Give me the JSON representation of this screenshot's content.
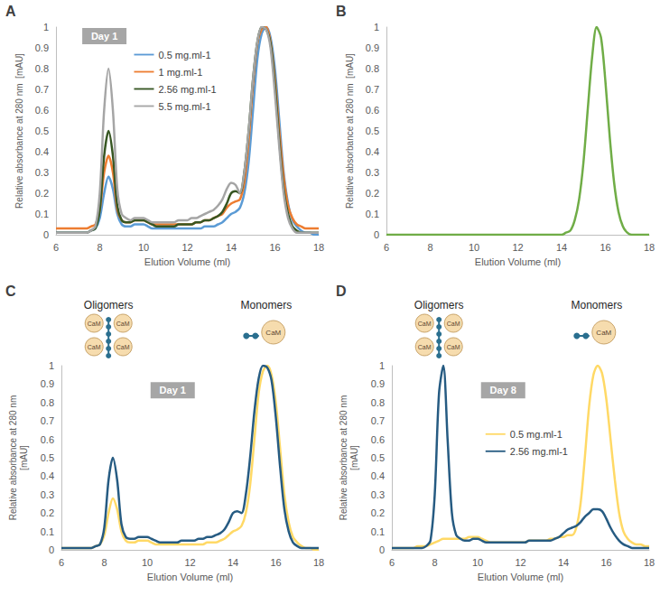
{
  "chart_data": [
    {
      "panel": "A",
      "type": "line",
      "badge": "Day 1",
      "x": [
        6.0,
        6.2,
        6.4,
        6.6,
        6.8,
        7.0,
        7.2,
        7.4,
        7.6,
        7.8,
        8.0,
        8.2,
        8.4,
        8.6,
        8.8,
        9.0,
        9.2,
        9.4,
        9.6,
        9.8,
        10.0,
        10.2,
        10.4,
        10.6,
        10.8,
        11.0,
        11.2,
        11.4,
        11.6,
        11.8,
        12.0,
        12.2,
        12.4,
        12.6,
        12.8,
        13.0,
        13.2,
        13.4,
        13.6,
        13.8,
        14.0,
        14.2,
        14.4,
        14.6,
        14.8,
        15.0,
        15.2,
        15.4,
        15.6,
        15.8,
        16.0,
        16.2,
        16.4,
        16.6,
        16.8,
        17.0,
        17.2,
        17.4,
        17.6,
        17.8,
        18.0
      ],
      "series": [
        {
          "name": "0.5 mg.ml-1",
          "color": "#5b9bd5",
          "values": [
            0.01,
            0.01,
            0.01,
            0.01,
            0.01,
            0.01,
            0.01,
            0.01,
            0.02,
            0.03,
            0.08,
            0.2,
            0.28,
            0.22,
            0.1,
            0.05,
            0.04,
            0.04,
            0.05,
            0.05,
            0.05,
            0.04,
            0.03,
            0.03,
            0.03,
            0.03,
            0.03,
            0.03,
            0.03,
            0.03,
            0.03,
            0.03,
            0.03,
            0.03,
            0.04,
            0.04,
            0.04,
            0.05,
            0.06,
            0.08,
            0.1,
            0.11,
            0.13,
            0.2,
            0.35,
            0.6,
            0.85,
            0.97,
            1.0,
            0.95,
            0.8,
            0.55,
            0.3,
            0.15,
            0.07,
            0.04,
            0.02,
            0.01,
            0.01,
            0,
            0
          ]
        },
        {
          "name": "1 mg.ml-1",
          "color": "#ed7d31",
          "values": [
            0.03,
            0.03,
            0.03,
            0.03,
            0.03,
            0.03,
            0.03,
            0.03,
            0.04,
            0.05,
            0.12,
            0.3,
            0.38,
            0.3,
            0.12,
            0.07,
            0.06,
            0.06,
            0.07,
            0.07,
            0.07,
            0.06,
            0.05,
            0.05,
            0.05,
            0.05,
            0.05,
            0.05,
            0.05,
            0.05,
            0.05,
            0.05,
            0.06,
            0.06,
            0.07,
            0.07,
            0.08,
            0.09,
            0.1,
            0.13,
            0.15,
            0.16,
            0.17,
            0.25,
            0.45,
            0.72,
            0.92,
            0.99,
            1.0,
            0.93,
            0.75,
            0.5,
            0.28,
            0.14,
            0.08,
            0.05,
            0.04,
            0.03,
            0.03,
            0.03,
            0.03
          ]
        },
        {
          "name": "2.56 mg.ml-1",
          "color": "#375623",
          "values": [
            0.01,
            0.01,
            0.01,
            0.01,
            0.01,
            0.01,
            0.01,
            0.01,
            0.02,
            0.03,
            0.12,
            0.38,
            0.5,
            0.38,
            0.14,
            0.07,
            0.06,
            0.06,
            0.07,
            0.07,
            0.07,
            0.06,
            0.05,
            0.04,
            0.04,
            0.04,
            0.04,
            0.04,
            0.05,
            0.05,
            0.05,
            0.05,
            0.06,
            0.06,
            0.07,
            0.07,
            0.08,
            0.09,
            0.11,
            0.15,
            0.2,
            0.21,
            0.2,
            0.3,
            0.5,
            0.75,
            0.93,
            1.0,
            0.99,
            0.92,
            0.72,
            0.45,
            0.22,
            0.1,
            0.04,
            0.02,
            0.01,
            0.01,
            0.01,
            0.01,
            0.01
          ]
        },
        {
          "name": "5.5 mg.ml-1",
          "color": "#a5a5a5",
          "values": [
            0.01,
            0.01,
            0.01,
            0.01,
            0.01,
            0.01,
            0.01,
            0.01,
            0.02,
            0.04,
            0.2,
            0.6,
            0.8,
            0.6,
            0.22,
            0.1,
            0.08,
            0.07,
            0.08,
            0.08,
            0.08,
            0.07,
            0.06,
            0.06,
            0.06,
            0.06,
            0.06,
            0.06,
            0.07,
            0.07,
            0.07,
            0.08,
            0.08,
            0.09,
            0.1,
            0.11,
            0.12,
            0.14,
            0.17,
            0.22,
            0.25,
            0.24,
            0.2,
            0.3,
            0.5,
            0.75,
            0.93,
            1.0,
            0.99,
            0.9,
            0.68,
            0.42,
            0.2,
            0.08,
            0.03,
            0.01,
            0.01,
            0.01,
            0.01,
            0.01,
            0.01
          ]
        }
      ],
      "xlim": [
        6,
        18
      ],
      "xticks": [
        6,
        8,
        10,
        12,
        14,
        16,
        18
      ],
      "ylim": [
        0,
        1
      ],
      "yticks": [
        0,
        0.1,
        0.2,
        0.3,
        0.4,
        0.5,
        0.6,
        0.7,
        0.8,
        0.9,
        1
      ],
      "x_label": "Elution Volume (ml)",
      "y_label": "Relative absorbance at 280 nm  [mAU]",
      "grid": false,
      "legend": "upper-left"
    },
    {
      "panel": "B",
      "type": "line",
      "x": [
        6.0,
        6.2,
        6.4,
        6.6,
        6.8,
        7.0,
        7.2,
        7.4,
        7.6,
        7.8,
        8.0,
        8.2,
        8.4,
        8.6,
        8.8,
        9.0,
        9.2,
        9.4,
        9.6,
        9.8,
        10.0,
        10.2,
        10.4,
        10.6,
        10.8,
        11.0,
        11.2,
        11.4,
        11.6,
        11.8,
        12.0,
        12.2,
        12.4,
        12.6,
        12.8,
        13.0,
        13.2,
        13.4,
        13.6,
        13.8,
        14.0,
        14.2,
        14.4,
        14.6,
        14.8,
        15.0,
        15.2,
        15.4,
        15.6,
        15.8,
        16.0,
        16.2,
        16.4,
        16.6,
        16.8,
        17.0,
        17.2,
        17.4,
        17.6,
        17.8,
        18.0
      ],
      "series": [
        {
          "color": "#70ad47",
          "values": [
            0,
            0,
            0,
            0,
            0,
            0,
            0,
            0,
            0,
            0,
            0,
            0,
            0,
            0,
            0,
            0,
            0,
            0,
            0,
            0,
            0,
            0,
            0,
            0,
            0,
            0,
            0,
            0,
            0,
            0,
            0,
            0,
            0,
            0,
            0,
            0,
            0,
            0,
            0,
            0,
            0,
            0.01,
            0.02,
            0.07,
            0.17,
            0.35,
            0.61,
            0.86,
            1.0,
            0.95,
            0.74,
            0.47,
            0.25,
            0.11,
            0.04,
            0.01,
            0,
            0,
            0,
            0,
            0
          ]
        }
      ],
      "xlim": [
        6,
        18
      ],
      "xticks": [
        6,
        8,
        10,
        12,
        14,
        16,
        18
      ],
      "ylim": [
        0,
        1
      ],
      "yticks": [
        0,
        0.1,
        0.2,
        0.3,
        0.4,
        0.5,
        0.6,
        0.7,
        0.8,
        0.9,
        1
      ],
      "x_label": "Elution Volume (ml)",
      "y_label": "Relative absorbance at 280 nm  [mAU]",
      "grid": false
    },
    {
      "panel": "C",
      "type": "line",
      "badge": "Day 1",
      "annotations": [
        "Oligomers",
        "Monomers"
      ],
      "icon_label": "CaM",
      "x": [
        6.0,
        6.2,
        6.4,
        6.6,
        6.8,
        7.0,
        7.2,
        7.4,
        7.6,
        7.8,
        8.0,
        8.2,
        8.4,
        8.6,
        8.8,
        9.0,
        9.2,
        9.4,
        9.6,
        9.8,
        10.0,
        10.2,
        10.4,
        10.6,
        10.8,
        11.0,
        11.2,
        11.4,
        11.6,
        11.8,
        12.0,
        12.2,
        12.4,
        12.6,
        12.8,
        13.0,
        13.2,
        13.4,
        13.6,
        13.8,
        14.0,
        14.2,
        14.4,
        14.6,
        14.8,
        15.0,
        15.2,
        15.4,
        15.6,
        15.8,
        16.0,
        16.2,
        16.4,
        16.6,
        16.8,
        17.0,
        17.2,
        17.4,
        17.6,
        17.8,
        18.0
      ],
      "series": [
        {
          "color": "#ffd966",
          "values": [
            0.01,
            0.01,
            0.01,
            0.01,
            0.01,
            0.01,
            0.01,
            0.01,
            0.02,
            0.03,
            0.08,
            0.2,
            0.28,
            0.22,
            0.1,
            0.05,
            0.04,
            0.04,
            0.05,
            0.05,
            0.05,
            0.04,
            0.03,
            0.03,
            0.03,
            0.03,
            0.03,
            0.03,
            0.03,
            0.03,
            0.03,
            0.03,
            0.03,
            0.03,
            0.04,
            0.04,
            0.04,
            0.05,
            0.06,
            0.08,
            0.1,
            0.11,
            0.13,
            0.2,
            0.35,
            0.6,
            0.85,
            0.97,
            1.0,
            0.95,
            0.8,
            0.55,
            0.3,
            0.15,
            0.07,
            0.04,
            0.02,
            0.01,
            0.01,
            0,
            0
          ]
        },
        {
          "color": "#265b82",
          "values": [
            0.01,
            0.01,
            0.01,
            0.01,
            0.01,
            0.01,
            0.01,
            0.01,
            0.02,
            0.03,
            0.12,
            0.38,
            0.5,
            0.38,
            0.14,
            0.07,
            0.06,
            0.06,
            0.07,
            0.07,
            0.07,
            0.06,
            0.05,
            0.04,
            0.04,
            0.04,
            0.04,
            0.04,
            0.05,
            0.05,
            0.05,
            0.05,
            0.06,
            0.06,
            0.07,
            0.07,
            0.08,
            0.09,
            0.11,
            0.15,
            0.2,
            0.21,
            0.2,
            0.3,
            0.5,
            0.75,
            0.93,
            1.0,
            0.99,
            0.92,
            0.72,
            0.45,
            0.22,
            0.1,
            0.04,
            0.02,
            0.01,
            0.01,
            0.01,
            0.01,
            0.01
          ]
        }
      ],
      "xlim": [
        6,
        18
      ],
      "xticks": [
        6,
        8,
        10,
        12,
        14,
        16,
        18
      ],
      "ylim": [
        0,
        1
      ],
      "yticks": [
        0,
        0.1,
        0.2,
        0.3,
        0.4,
        0.5,
        0.6,
        0.7,
        0.8,
        0.9,
        1
      ],
      "x_label": "Elution Volume (ml)",
      "y_label": "Relative absorbance at 280 nm  [mAU]",
      "grid": false
    },
    {
      "panel": "D",
      "type": "line",
      "badge": "Day 8",
      "annotations": [
        "Oligomers",
        "Monomers"
      ],
      "icon_label": "CaM",
      "x": [
        6.0,
        6.2,
        6.4,
        6.6,
        6.8,
        7.0,
        7.2,
        7.4,
        7.6,
        7.8,
        8.0,
        8.2,
        8.4,
        8.6,
        8.8,
        9.0,
        9.2,
        9.4,
        9.6,
        9.8,
        10.0,
        10.2,
        10.4,
        10.6,
        10.8,
        11.0,
        11.2,
        11.4,
        11.6,
        11.8,
        12.0,
        12.2,
        12.4,
        12.6,
        12.8,
        13.0,
        13.2,
        13.4,
        13.6,
        13.8,
        14.0,
        14.2,
        14.4,
        14.6,
        14.8,
        15.0,
        15.2,
        15.4,
        15.6,
        15.8,
        16.0,
        16.2,
        16.4,
        16.6,
        16.8,
        17.0,
        17.2,
        17.4,
        17.6,
        17.8,
        18.0
      ],
      "series": [
        {
          "name": "0.5 mg.ml-1",
          "color": "#ffd966",
          "values": [
            0.01,
            0.01,
            0.01,
            0.01,
            0.01,
            0.01,
            0.02,
            0.02,
            0.02,
            0.03,
            0.04,
            0.05,
            0.06,
            0.06,
            0.06,
            0.06,
            0.06,
            0.06,
            0.07,
            0.07,
            0.07,
            0.06,
            0.05,
            0.04,
            0.04,
            0.04,
            0.04,
            0.04,
            0.04,
            0.04,
            0.04,
            0.04,
            0.05,
            0.05,
            0.05,
            0.05,
            0.05,
            0.06,
            0.06,
            0.07,
            0.07,
            0.08,
            0.08,
            0.12,
            0.25,
            0.5,
            0.78,
            0.95,
            1.0,
            0.96,
            0.82,
            0.6,
            0.38,
            0.2,
            0.1,
            0.06,
            0.04,
            0.03,
            0.03,
            0.02,
            0.02
          ]
        },
        {
          "name": "2.56 mg.ml-1",
          "color": "#265b82",
          "values": [
            0.01,
            0.01,
            0.01,
            0.01,
            0.01,
            0.01,
            0.01,
            0.01,
            0.02,
            0.05,
            0.3,
            0.85,
            1.0,
            0.6,
            0.2,
            0.08,
            0.06,
            0.05,
            0.05,
            0.06,
            0.06,
            0.05,
            0.04,
            0.04,
            0.04,
            0.04,
            0.04,
            0.04,
            0.04,
            0.04,
            0.04,
            0.04,
            0.05,
            0.05,
            0.05,
            0.05,
            0.05,
            0.05,
            0.06,
            0.07,
            0.09,
            0.11,
            0.12,
            0.13,
            0.15,
            0.18,
            0.2,
            0.22,
            0.22,
            0.21,
            0.17,
            0.12,
            0.08,
            0.05,
            0.03,
            0.02,
            0.01,
            0.01,
            0.01,
            0.01,
            0.01
          ]
        }
      ],
      "xlim": [
        6,
        18
      ],
      "xticks": [
        6,
        8,
        10,
        12,
        14,
        16,
        18
      ],
      "ylim": [
        0,
        1
      ],
      "yticks": [
        0,
        0.1,
        0.2,
        0.3,
        0.4,
        0.5,
        0.6,
        0.7,
        0.8,
        0.9,
        1
      ],
      "x_label": "Elution Volume (ml)",
      "y_label": "Relative absorbance at 280 nm  [mAU]",
      "grid": false,
      "legend": "center"
    }
  ]
}
